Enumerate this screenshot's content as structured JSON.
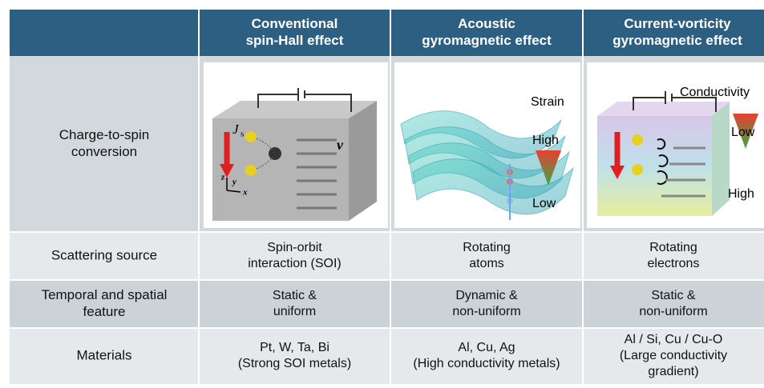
{
  "table": {
    "header": [
      "",
      [
        "Conventional",
        "spin-Hall effect"
      ],
      [
        "Acoustic",
        "gyromagnetic effect"
      ],
      [
        "Current-vorticity",
        "gyromagnetic effect"
      ]
    ],
    "rows": [
      {
        "label": [
          "Charge-to-spin",
          "conversion"
        ]
      },
      {
        "label": [
          "Scattering source"
        ],
        "cells": [
          [
            "Spin-orbit",
            "interaction (SOI)"
          ],
          [
            "Rotating",
            "atoms"
          ],
          [
            "Rotating",
            "electrons"
          ]
        ]
      },
      {
        "label": [
          "Temporal and spatial",
          "feature"
        ],
        "cells": [
          [
            "Static &",
            "uniform"
          ],
          [
            "Dynamic &",
            "non-uniform"
          ],
          [
            "Static &",
            "non-uniform"
          ]
        ]
      },
      {
        "label": [
          "Materials"
        ],
        "cells": [
          [
            "Pt, W, Ta, Bi",
            "(Strong SOI metals)"
          ],
          [
            "Al, Cu, Ag",
            "(High conductivity metals)"
          ],
          [
            "Al / Si, Cu / Cu-O",
            "(Large conductivity",
            "gradient)"
          ]
        ]
      }
    ]
  },
  "figures": {
    "spin_hall": {
      "current": "J",
      "current_sub": "s",
      "velocity": "v",
      "axes": [
        "z",
        "y",
        "x"
      ]
    },
    "acoustic": {
      "strain": "Strain",
      "high": "High",
      "low": "Low"
    },
    "vorticity": {
      "conductivity": "Conductivity",
      "low": "Low",
      "high": "High"
    }
  }
}
